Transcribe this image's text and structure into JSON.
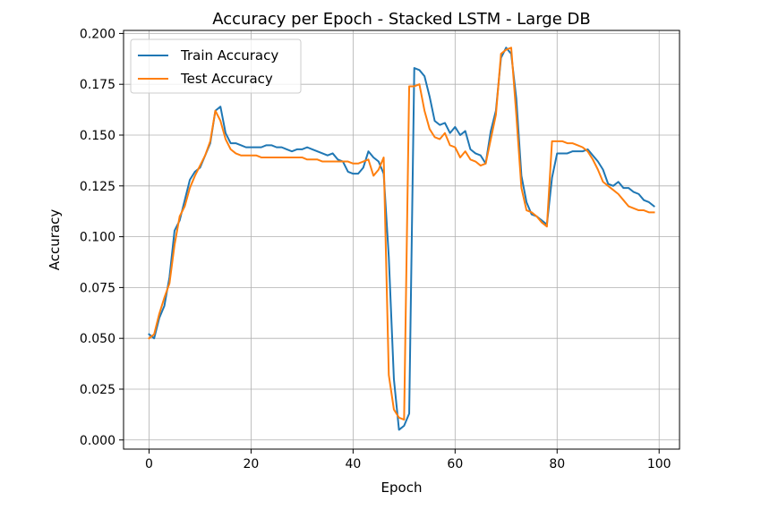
{
  "chart_data": {
    "type": "line",
    "title": "Accuracy per Epoch - Stacked LSTM - Large DB",
    "xlabel": "Epoch",
    "ylabel": "Accuracy",
    "xlim": [
      -5,
      104
    ],
    "ylim": [
      -0.0045,
      0.2015
    ],
    "xticks": [
      0,
      20,
      40,
      60,
      80,
      100
    ],
    "yticks": [
      0.0,
      0.025,
      0.05,
      0.075,
      0.1,
      0.125,
      0.15,
      0.175,
      0.2
    ],
    "ytick_labels": [
      "0.000",
      "0.025",
      "0.050",
      "0.075",
      "0.100",
      "0.125",
      "0.150",
      "0.175",
      "0.200"
    ],
    "grid": true,
    "legend_position": "upper-left",
    "series": [
      {
        "name": "Train Accuracy",
        "color": "#1f77b4",
        "values": [
          0.052,
          0.05,
          0.06,
          0.066,
          0.08,
          0.103,
          0.108,
          0.118,
          0.128,
          0.132,
          0.134,
          0.14,
          0.146,
          0.162,
          0.164,
          0.151,
          0.146,
          0.146,
          0.145,
          0.144,
          0.144,
          0.144,
          0.144,
          0.145,
          0.145,
          0.144,
          0.144,
          0.143,
          0.142,
          0.143,
          0.143,
          0.144,
          0.143,
          0.142,
          0.141,
          0.14,
          0.141,
          0.138,
          0.137,
          0.132,
          0.131,
          0.131,
          0.134,
          0.142,
          0.139,
          0.137,
          0.131,
          0.09,
          0.03,
          0.005,
          0.007,
          0.013,
          0.183,
          0.182,
          0.179,
          0.169,
          0.157,
          0.155,
          0.156,
          0.151,
          0.154,
          0.15,
          0.152,
          0.143,
          0.141,
          0.14,
          0.136,
          0.152,
          0.162,
          0.188,
          0.193,
          0.19,
          0.168,
          0.13,
          0.117,
          0.111,
          0.11,
          0.108,
          0.106,
          0.129,
          0.141,
          0.141,
          0.141,
          0.142,
          0.142,
          0.142,
          0.143,
          0.14,
          0.137,
          0.133,
          0.126,
          0.125,
          0.127,
          0.124,
          0.124,
          0.122,
          0.121,
          0.118,
          0.117,
          0.115
        ]
      },
      {
        "name": "Test Accuracy",
        "color": "#ff7f0e",
        "values": [
          0.05,
          0.052,
          0.062,
          0.07,
          0.077,
          0.096,
          0.11,
          0.115,
          0.124,
          0.13,
          0.135,
          0.14,
          0.147,
          0.162,
          0.157,
          0.148,
          0.143,
          0.141,
          0.14,
          0.14,
          0.14,
          0.14,
          0.139,
          0.139,
          0.139,
          0.139,
          0.139,
          0.139,
          0.139,
          0.139,
          0.139,
          0.138,
          0.138,
          0.138,
          0.137,
          0.137,
          0.137,
          0.137,
          0.137,
          0.137,
          0.136,
          0.136,
          0.137,
          0.138,
          0.13,
          0.133,
          0.139,
          0.032,
          0.015,
          0.011,
          0.01,
          0.174,
          0.174,
          0.175,
          0.162,
          0.153,
          0.149,
          0.148,
          0.151,
          0.145,
          0.144,
          0.139,
          0.142,
          0.138,
          0.137,
          0.135,
          0.136,
          0.148,
          0.16,
          0.19,
          0.192,
          0.193,
          0.16,
          0.124,
          0.113,
          0.112,
          0.11,
          0.107,
          0.105,
          0.147,
          0.147,
          0.147,
          0.146,
          0.146,
          0.145,
          0.144,
          0.142,
          0.138,
          0.133,
          0.127,
          0.125,
          0.123,
          0.121,
          0.118,
          0.115,
          0.114,
          0.113,
          0.113,
          0.112,
          0.112
        ]
      }
    ]
  }
}
